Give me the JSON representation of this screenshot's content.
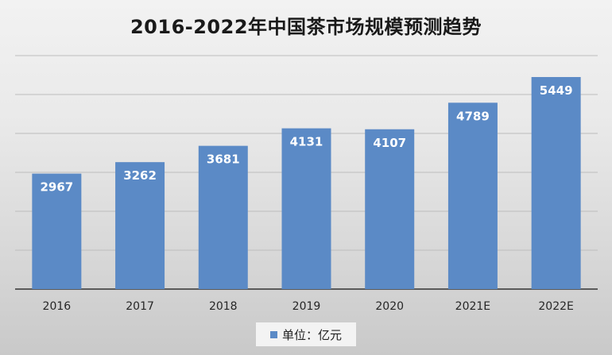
{
  "chart_data": {
    "type": "bar",
    "title": "2016-2022年中国茶市场规模预测趋势",
    "categories": [
      "2016",
      "2017",
      "2018",
      "2019",
      "2020",
      "2021E",
      "2022E"
    ],
    "series": [
      {
        "name": "单位：亿元",
        "values": [
          2967,
          3262,
          3681,
          4131,
          4107,
          4789,
          5449
        ]
      }
    ],
    "ylim": [
      0,
      6000
    ],
    "grid": true,
    "legend_position": "bottom",
    "bar_color": "#5b8ac6",
    "label_color": "#ffffff"
  }
}
